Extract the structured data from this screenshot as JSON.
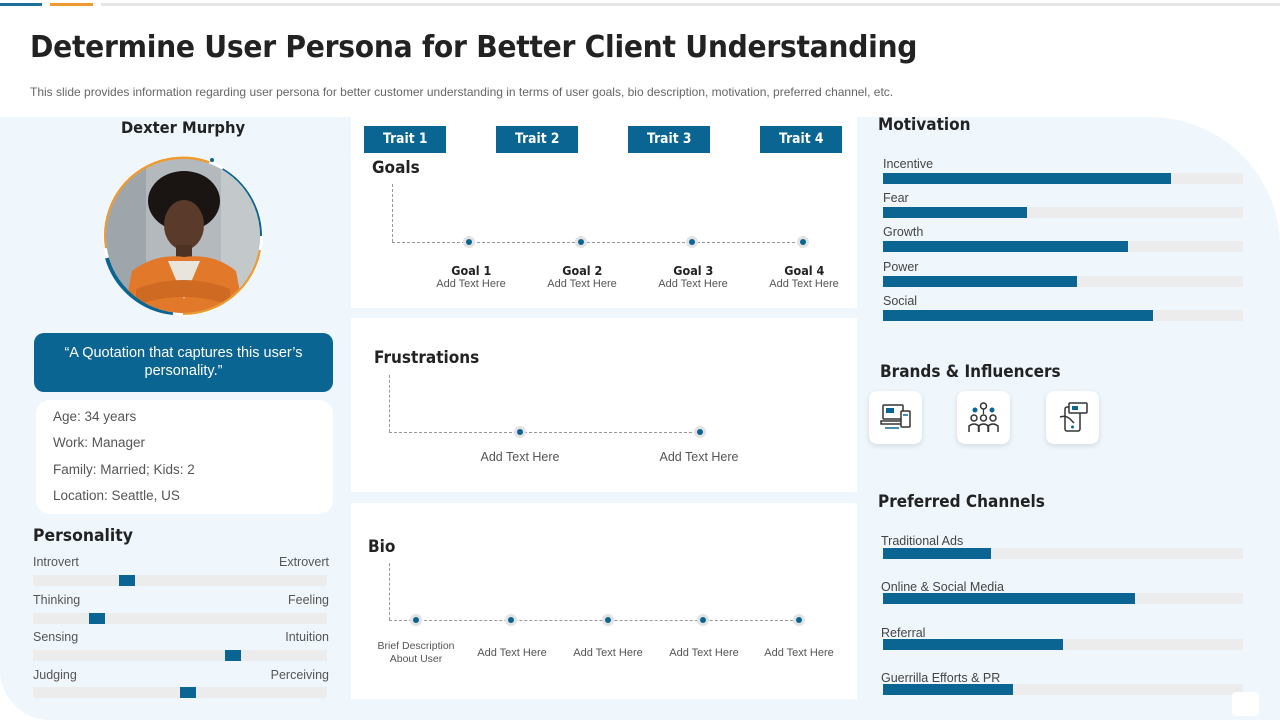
{
  "header": {
    "title": "Determine User Persona for Better Client Understanding",
    "subtitle": "This slide provides information regarding user persona for better customer understanding in terms of user goals, bio description, motivation, preferred channel, etc."
  },
  "profile": {
    "name": "Dexter Murphy",
    "quote": "“A Quotation that captures this user’s personality.”",
    "details": [
      "Age: 34 years",
      "Work: Manager",
      "Family: Married;  Kids: 2",
      "Location: Seattle, US"
    ]
  },
  "personality": {
    "heading": "Personality",
    "traits": [
      {
        "left": "Introvert",
        "right": "Extrovert",
        "value": 0.31
      },
      {
        "left": "Thinking",
        "right": "Feeling",
        "value": 0.2
      },
      {
        "left": "Sensing",
        "right": "Intuition",
        "value": 0.69
      },
      {
        "left": "Judging",
        "right": "Perceiving",
        "value": 0.53
      }
    ]
  },
  "traits": [
    "Trait 1",
    "Trait 2",
    "Trait 3",
    "Trait 4"
  ],
  "goals": {
    "heading": "Goals",
    "items": [
      {
        "title": "Goal 1",
        "text": "Add Text Here"
      },
      {
        "title": "Goal 2",
        "text": "Add Text Here"
      },
      {
        "title": "Goal 3",
        "text": "Add Text Here"
      },
      {
        "title": "Goal 4",
        "text": "Add Text Here"
      }
    ]
  },
  "frustrations": {
    "heading": "Frustrations",
    "items": [
      "Add Text Here",
      "Add Text Here"
    ]
  },
  "bio": {
    "heading": "Bio",
    "first_line1": "Brief Description",
    "first_line2": "About User",
    "items": [
      "Add Text Here",
      "Add Text Here",
      "Add Text Here",
      "Add Text Here"
    ]
  },
  "motivation": {
    "heading": "Motivation",
    "items": [
      {
        "label": "Incentive",
        "value": 0.8
      },
      {
        "label": "Fear",
        "value": 0.4
      },
      {
        "label": "Growth",
        "value": 0.68
      },
      {
        "label": "Power",
        "value": 0.54
      },
      {
        "label": "Social",
        "value": 0.75
      }
    ]
  },
  "brands": {
    "heading": "Brands & Influencers",
    "icons": [
      "devices-icon",
      "team-network-icon",
      "mobile-payment-icon"
    ]
  },
  "channels": {
    "heading": "Preferred Channels",
    "items": [
      {
        "label": "Traditional Ads",
        "value": 0.3
      },
      {
        "label": "Online & Social Media",
        "value": 0.7
      },
      {
        "label": "Referral",
        "value": 0.5
      },
      {
        "label": "Guerrilla Efforts & PR",
        "value": 0.36
      }
    ]
  },
  "colors": {
    "primary": "#0b6592",
    "accent": "#ef9a2e",
    "track": "#ececec",
    "panel": "#f0f7fc"
  }
}
